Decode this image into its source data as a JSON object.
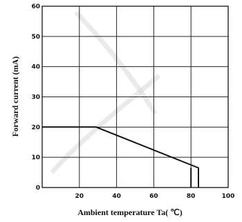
{
  "chart_data": {
    "type": "line",
    "xlabel": "Ambient temperature Ta(  ℃)",
    "ylabel": "Forward current  (mA)",
    "xlim": [
      0,
      100
    ],
    "ylim": [
      0,
      60
    ],
    "x_ticks": [
      20,
      40,
      60,
      80,
      100
    ],
    "y_ticks": [
      0,
      10,
      20,
      30,
      40,
      50,
      60
    ],
    "grid": true,
    "series": [
      {
        "values": [
          [
            0,
            20
          ],
          [
            29,
            20
          ],
          [
            84,
            6.5
          ],
          [
            84,
            0
          ]
        ]
      },
      {
        "values": [
          [
            80,
            0
          ],
          [
            80,
            6.5
          ]
        ]
      }
    ]
  }
}
